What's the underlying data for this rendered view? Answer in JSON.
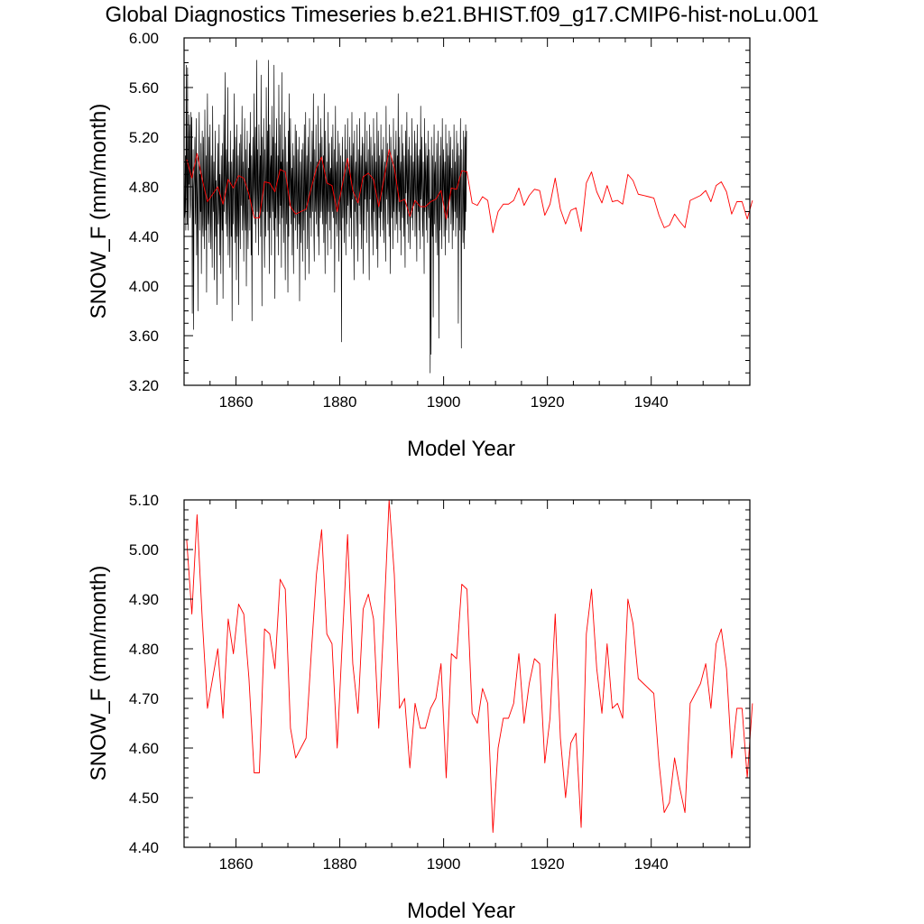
{
  "title": "Global Diagnostics Timeseries b.e21.BHIST.f09_g17.CMIP6-hist-noLu.001",
  "colors": {
    "monthly": "#000000",
    "annual": "#ff0000",
    "background": "#ffffff"
  },
  "chart_data": [
    {
      "type": "line",
      "ylabel": "SNOW_F (mm/month)",
      "xlabel": "Model Year",
      "xlim": [
        1850,
        1959
      ],
      "ylim": [
        3.2,
        6.0
      ],
      "x_ticks": [
        "1860",
        "1880",
        "1900",
        "1920",
        "1940"
      ],
      "y_ticks": [
        "3.20",
        "3.60",
        "4.00",
        "4.40",
        "4.80",
        "5.20",
        "5.60",
        "6.00"
      ],
      "series": [
        {
          "key": "monthly",
          "color": "#000000",
          "x_start": 1850,
          "x_step": 0.0833333,
          "values": [
            5.25,
            4.55,
            4.6,
            5.05,
            4.45,
            5.78,
            4.85,
            4.5,
            5.76,
            4.45,
            4.7,
            5.38,
            4.82,
            5.3,
            4.55,
            4.65,
            5.4,
            4.88,
            5.36,
            3.78,
            4.8,
            5.1,
            3.65,
            4.78,
            4.9,
            5.2,
            4.5,
            4.85,
            5.35,
            4.25,
            4.7,
            5.05,
            3.8,
            4.65,
            4.95,
            5.4,
            4.45,
            4.9,
            4.6,
            5.15,
            4.1,
            4.78,
            5.25,
            4.5,
            4.4,
            5.2,
            4.7,
            4.3,
            5.42,
            4.75,
            4.45,
            5.05,
            3.95,
            4.85,
            5.55,
            4.6,
            4.5,
            5.2,
            4.35,
            4.8,
            5.3,
            4.55,
            4.3,
            5.05,
            4.7,
            4.15,
            5.45,
            4.8,
            4.6,
            5.0,
            4.05,
            4.75,
            5.25,
            4.4,
            4.85,
            4.55,
            3.85,
            4.8,
            5.15,
            4.5,
            4.7,
            5.3,
            4.25,
            4.9,
            4.65,
            4.1,
            5.05,
            4.8,
            4.45,
            5.15,
            3.9,
            4.7,
            5.38,
            4.6,
            4.95,
            5.72,
            4.5,
            4.85,
            5.1,
            4.4,
            4.75,
            5.6,
            4.25,
            4.7,
            5.0,
            4.55,
            4.15,
            5.25,
            4.85,
            4.4,
            5.0,
            3.72,
            4.8,
            5.1,
            4.5,
            4.9,
            5.55,
            4.6,
            4.35,
            5.2,
            4.75,
            4.05,
            5.3,
            4.4,
            4.7,
            5.05,
            3.85,
            4.8,
            5.15,
            4.55,
            4.3,
            5.22,
            4.65,
            4.9,
            5.45,
            4.45,
            4.7,
            5.0,
            4.2,
            4.85,
            5.35,
            4.6,
            4.45,
            5.1,
            4.0,
            4.75,
            5.25,
            4.55,
            4.3,
            4.95,
            4.7,
            5.15,
            4.45,
            5.4,
            4.8,
            4.25,
            5.05,
            3.72,
            4.9,
            5.2,
            4.6,
            4.8,
            5.55,
            4.5,
            4.95,
            5.28,
            4.35,
            4.85,
            5.82,
            4.6,
            5.1,
            4.7,
            4.25,
            5.3,
            4.9,
            4.55,
            5.05,
            4.4,
            5.7,
            4.8,
            3.84,
            5.2,
            4.6,
            4.95,
            5.35,
            4.5,
            4.15,
            5.1,
            4.75,
            4.4,
            5.6,
            4.85,
            4.6,
            5.25,
            4.45,
            5.82,
            4.7,
            4.1,
            5.3,
            4.55,
            4.95,
            5.05,
            4.25,
            5.45,
            4.8,
            4.6,
            5.2,
            4.45,
            5.78,
            4.7,
            3.9,
            5.15,
            4.55,
            4.9,
            5.35,
            4.4,
            4.75,
            5.05,
            4.25,
            5.62,
            4.8,
            4.5,
            5.3,
            4.65,
            5.0,
            4.15,
            5.72,
            4.55,
            4.9,
            5.1,
            4.35,
            4.7,
            5.4,
            4.6,
            4.05,
            5.2,
            4.8,
            4.5,
            5.0,
            4.7,
            3.95,
            5.25,
            4.4,
            5.55,
            4.65,
            4.9,
            5.35,
            4.5,
            4.85,
            4.95,
            4.25,
            5.15,
            4.75,
            4.1,
            5.05,
            4.55,
            4.8,
            5.3,
            4.45,
            4.7,
            5.25,
            4.6,
            4.3,
            5.1,
            4.8,
            4.5,
            5.2,
            3.88,
            4.65,
            5.0,
            4.35,
            4.9,
            5.1,
            4.55,
            4.2,
            5.15,
            4.7,
            4.45,
            5.3,
            4.85,
            4.05,
            5.4,
            4.6,
            4.75,
            5.05,
            4.3,
            4.9,
            5.2,
            4.5,
            4.1,
            5.35,
            4.7,
            4.55,
            5.0,
            4.4,
            4.8,
            5.25,
            4.6,
            4.95,
            5.55,
            4.45,
            4.2,
            5.1,
            4.75,
            4.6,
            5.3,
            4.5,
            4.85,
            5.0,
            4.4,
            5.45,
            4.7,
            4.25,
            5.15,
            4.8,
            4.55,
            5.35,
            4.6,
            4.9,
            5.2,
            4.5,
            4.75,
            5.05,
            4.35,
            5.55,
            4.65,
            4.1,
            5.25,
            4.85,
            4.5,
            5.0,
            4.7,
            4.25,
            5.4,
            4.6,
            4.85,
            5.15,
            4.45,
            4.9,
            4.95,
            4.3,
            5.2,
            4.75,
            4.6,
            5.3,
            4.55,
            4.8,
            5.1,
            3.95,
            4.7,
            5.45,
            4.5,
            4.9,
            5.0,
            4.4,
            4.75,
            5.25,
            4.6,
            4.2,
            5.15,
            4.85,
            4.45,
            5.05,
            4.65,
            3.55,
            4.9,
            5.2,
            4.55,
            4.8,
            5.0,
            4.35,
            4.7,
            5.3,
            4.6,
            4.25,
            5.1,
            4.8,
            4.5,
            5.35,
            4.65,
            4.9,
            4.95,
            4.4,
            5.2,
            4.75,
            4.55,
            5.05,
            4.3,
            5.4,
            4.7,
            4.85,
            5.15,
            4.5,
            4.05,
            5.25,
            4.6,
            4.9,
            5.0,
            4.4,
            4.75,
            5.3,
            4.55,
            4.2,
            5.1,
            4.85,
            4.65,
            5.35,
            4.5,
            4.8,
            5.05,
            4.3,
            4.95,
            5.2,
            4.6,
            4.1,
            5.15,
            4.75,
            4.45,
            5.4,
            4.7,
            4.9,
            5.0,
            4.35,
            5.25,
            4.6,
            4.8,
            5.1,
            4.5,
            4.05,
            5.3,
            4.7,
            4.85,
            5.2,
            4.55,
            4.4,
            5.05,
            4.75,
            4.25,
            5.35,
            4.6,
            4.9,
            5.15,
            4.45,
            4.8,
            5.0,
            4.3,
            5.4,
            4.65,
            4.15,
            5.25,
            4.85,
            4.55,
            5.05,
            4.7,
            4.4,
            5.3,
            4.6,
            4.95,
            5.1,
            4.45,
            4.75,
            5.2,
            4.35,
            4.9,
            5.0,
            4.55,
            4.2,
            5.45,
            4.7,
            4.8,
            5.15,
            4.5,
            4.85,
            5.05,
            4.4,
            5.3,
            4.65,
            4.1,
            5.2,
            4.9,
            4.55,
            5.0,
            4.75,
            4.3,
            5.35,
            4.6,
            4.85,
            5.1,
            4.45,
            4.95,
            5.25,
            4.5,
            4.7,
            5.05,
            4.35,
            5.55,
            4.8,
            4.6,
            5.2,
            4.45,
            4.9,
            5.0,
            4.25,
            5.3,
            4.7,
            4.55,
            5.15,
            4.85,
            4.4,
            5.05,
            4.6,
            4.15,
            5.25,
            4.75,
            4.9,
            5.4,
            4.5,
            4.8,
            5.1,
            4.35,
            4.95,
            5.2,
            4.6,
            4.3,
            5.05,
            4.7,
            4.55,
            5.35,
            4.85,
            4.45,
            5.0,
            4.65,
            4.9,
            5.25,
            4.4,
            4.75,
            5.15,
            4.55,
            4.2,
            5.3,
            4.8,
            4.6,
            5.05,
            4.45,
            4.9,
            5.1,
            4.3,
            5.45,
            4.7,
            4.85,
            5.2,
            4.55,
            4.4,
            5.0,
            4.75,
            4.1,
            5.35,
            4.6,
            4.9,
            5.15,
            4.45,
            4.8,
            5.05,
            4.35,
            5.25,
            4.65,
            4.55,
            5.1,
            4.85,
            3.3,
            4.7,
            3.45,
            5.2,
            4.6,
            4.4,
            5.05,
            3.75,
            4.8,
            5.3,
            4.5,
            4.9,
            5.0,
            4.35,
            4.7,
            5.15,
            4.55,
            4.25,
            5.25,
            4.85,
            3.58,
            4.6,
            5.05,
            4.45,
            4.75,
            5.2,
            4.55,
            4.3,
            5.35,
            4.7,
            4.9,
            5.1,
            4.4,
            4.85,
            5.0,
            4.25,
            5.3,
            4.6,
            4.45,
            5.15,
            4.75,
            4.55,
            5.05,
            4.35,
            5.25,
            4.7,
            4.9,
            5.2,
            4.5,
            4.8,
            4.95,
            4.3,
            5.1,
            4.65,
            4.45,
            5.3,
            4.85,
            4.6,
            5.0,
            4.4,
            4.75,
            5.25,
            4.55,
            4.9,
            5.15,
            3.7,
            4.7,
            5.05,
            4.45,
            4.8,
            5.35,
            4.6,
            3.5,
            5.1,
            4.85,
            4.55,
            4.35,
            5.25,
            4.7,
            4.3,
            5.2,
            4.45,
            5.3,
            4.6,
            5.25
          ]
        },
        {
          "key": "annual",
          "color": "#ff0000",
          "x_start": 1850.5,
          "x_step": 1,
          "values": [
            5.02,
            4.87,
            5.07,
            4.86,
            4.68,
            4.74,
            4.8,
            4.66,
            4.86,
            4.79,
            4.89,
            4.87,
            4.74,
            4.55,
            4.55,
            4.84,
            4.83,
            4.76,
            4.94,
            4.92,
            4.64,
            4.58,
            4.6,
            4.62,
            4.79,
            4.95,
            5.04,
            4.83,
            4.81,
            4.6,
            4.82,
            5.03,
            4.77,
            4.67,
            4.88,
            4.91,
            4.86,
            4.64,
            4.86,
            5.1,
            4.95,
            4.68,
            4.7,
            4.56,
            4.69,
            4.64,
            4.64,
            4.68,
            4.7,
            4.77,
            4.54,
            4.79,
            4.78,
            4.93,
            4.92,
            4.67,
            4.65,
            4.72,
            4.69,
            4.43,
            4.6,
            4.66,
            4.66,
            4.69,
            4.79,
            4.65,
            4.73,
            4.78,
            4.77,
            4.57,
            4.66,
            4.87,
            4.62,
            4.5,
            4.61,
            4.63,
            4.44,
            4.83,
            4.92,
            4.76,
            4.67,
            4.81,
            4.68,
            4.69,
            4.66,
            4.9,
            4.85,
            4.74,
            4.73,
            4.72,
            4.71,
            4.57,
            4.47,
            4.49,
            4.58,
            4.52,
            4.47,
            4.69,
            4.71,
            4.73,
            4.77,
            4.68,
            4.81,
            4.84,
            4.76,
            4.58,
            4.68,
            4.68,
            4.54,
            4.69
          ]
        }
      ]
    },
    {
      "type": "line",
      "ylabel": "SNOW_F (mm/month)",
      "xlabel": "Model Year",
      "xlim": [
        1850,
        1959
      ],
      "ylim": [
        4.4,
        5.1
      ],
      "x_ticks": [
        "1860",
        "1880",
        "1900",
        "1920",
        "1940"
      ],
      "y_ticks": [
        "4.40",
        "4.50",
        "4.60",
        "4.70",
        "4.80",
        "4.90",
        "5.00",
        "5.10"
      ],
      "series": [
        {
          "key": "annual",
          "color": "#ff0000",
          "x_start": 1850.5,
          "x_step": 1,
          "values": [
            5.02,
            4.87,
            5.07,
            4.86,
            4.68,
            4.74,
            4.8,
            4.66,
            4.86,
            4.79,
            4.89,
            4.87,
            4.74,
            4.55,
            4.55,
            4.84,
            4.83,
            4.76,
            4.94,
            4.92,
            4.64,
            4.58,
            4.6,
            4.62,
            4.79,
            4.95,
            5.04,
            4.83,
            4.81,
            4.6,
            4.82,
            5.03,
            4.77,
            4.67,
            4.88,
            4.91,
            4.86,
            4.64,
            4.86,
            5.1,
            4.95,
            4.68,
            4.7,
            4.56,
            4.69,
            4.64,
            4.64,
            4.68,
            4.7,
            4.77,
            4.54,
            4.79,
            4.78,
            4.93,
            4.92,
            4.67,
            4.65,
            4.72,
            4.69,
            4.43,
            4.6,
            4.66,
            4.66,
            4.69,
            4.79,
            4.65,
            4.73,
            4.78,
            4.77,
            4.57,
            4.66,
            4.87,
            4.62,
            4.5,
            4.61,
            4.63,
            4.44,
            4.83,
            4.92,
            4.76,
            4.67,
            4.81,
            4.68,
            4.69,
            4.66,
            4.9,
            4.85,
            4.74,
            4.73,
            4.72,
            4.71,
            4.57,
            4.47,
            4.49,
            4.58,
            4.52,
            4.47,
            4.69,
            4.71,
            4.73,
            4.77,
            4.68,
            4.81,
            4.84,
            4.76,
            4.58,
            4.68,
            4.68,
            4.54,
            4.69
          ]
        }
      ]
    }
  ]
}
